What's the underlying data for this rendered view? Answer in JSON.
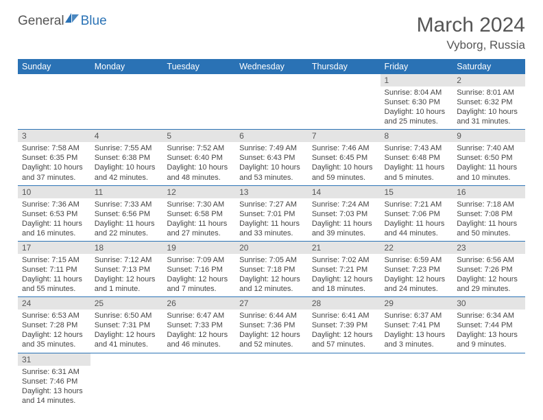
{
  "logo": {
    "general": "General",
    "blue": "Blue"
  },
  "title": "March 2024",
  "location": "Vyborg, Russia",
  "colors": {
    "header_bg": "#2a72b5",
    "header_fg": "#ffffff",
    "daynum_bg": "#e4e4e4",
    "row_border": "#2a72b5",
    "text": "#444444"
  },
  "weekdays": [
    "Sunday",
    "Monday",
    "Tuesday",
    "Wednesday",
    "Thursday",
    "Friday",
    "Saturday"
  ],
  "weeks": [
    [
      {
        "n": "",
        "sr": "",
        "ss": "",
        "dl": ""
      },
      {
        "n": "",
        "sr": "",
        "ss": "",
        "dl": ""
      },
      {
        "n": "",
        "sr": "",
        "ss": "",
        "dl": ""
      },
      {
        "n": "",
        "sr": "",
        "ss": "",
        "dl": ""
      },
      {
        "n": "",
        "sr": "",
        "ss": "",
        "dl": ""
      },
      {
        "n": "1",
        "sr": "Sunrise: 8:04 AM",
        "ss": "Sunset: 6:30 PM",
        "dl": "Daylight: 10 hours and 25 minutes."
      },
      {
        "n": "2",
        "sr": "Sunrise: 8:01 AM",
        "ss": "Sunset: 6:32 PM",
        "dl": "Daylight: 10 hours and 31 minutes."
      }
    ],
    [
      {
        "n": "3",
        "sr": "Sunrise: 7:58 AM",
        "ss": "Sunset: 6:35 PM",
        "dl": "Daylight: 10 hours and 37 minutes."
      },
      {
        "n": "4",
        "sr": "Sunrise: 7:55 AM",
        "ss": "Sunset: 6:38 PM",
        "dl": "Daylight: 10 hours and 42 minutes."
      },
      {
        "n": "5",
        "sr": "Sunrise: 7:52 AM",
        "ss": "Sunset: 6:40 PM",
        "dl": "Daylight: 10 hours and 48 minutes."
      },
      {
        "n": "6",
        "sr": "Sunrise: 7:49 AM",
        "ss": "Sunset: 6:43 PM",
        "dl": "Daylight: 10 hours and 53 minutes."
      },
      {
        "n": "7",
        "sr": "Sunrise: 7:46 AM",
        "ss": "Sunset: 6:45 PM",
        "dl": "Daylight: 10 hours and 59 minutes."
      },
      {
        "n": "8",
        "sr": "Sunrise: 7:43 AM",
        "ss": "Sunset: 6:48 PM",
        "dl": "Daylight: 11 hours and 5 minutes."
      },
      {
        "n": "9",
        "sr": "Sunrise: 7:40 AM",
        "ss": "Sunset: 6:50 PM",
        "dl": "Daylight: 11 hours and 10 minutes."
      }
    ],
    [
      {
        "n": "10",
        "sr": "Sunrise: 7:36 AM",
        "ss": "Sunset: 6:53 PM",
        "dl": "Daylight: 11 hours and 16 minutes."
      },
      {
        "n": "11",
        "sr": "Sunrise: 7:33 AM",
        "ss": "Sunset: 6:56 PM",
        "dl": "Daylight: 11 hours and 22 minutes."
      },
      {
        "n": "12",
        "sr": "Sunrise: 7:30 AM",
        "ss": "Sunset: 6:58 PM",
        "dl": "Daylight: 11 hours and 27 minutes."
      },
      {
        "n": "13",
        "sr": "Sunrise: 7:27 AM",
        "ss": "Sunset: 7:01 PM",
        "dl": "Daylight: 11 hours and 33 minutes."
      },
      {
        "n": "14",
        "sr": "Sunrise: 7:24 AM",
        "ss": "Sunset: 7:03 PM",
        "dl": "Daylight: 11 hours and 39 minutes."
      },
      {
        "n": "15",
        "sr": "Sunrise: 7:21 AM",
        "ss": "Sunset: 7:06 PM",
        "dl": "Daylight: 11 hours and 44 minutes."
      },
      {
        "n": "16",
        "sr": "Sunrise: 7:18 AM",
        "ss": "Sunset: 7:08 PM",
        "dl": "Daylight: 11 hours and 50 minutes."
      }
    ],
    [
      {
        "n": "17",
        "sr": "Sunrise: 7:15 AM",
        "ss": "Sunset: 7:11 PM",
        "dl": "Daylight: 11 hours and 55 minutes."
      },
      {
        "n": "18",
        "sr": "Sunrise: 7:12 AM",
        "ss": "Sunset: 7:13 PM",
        "dl": "Daylight: 12 hours and 1 minute."
      },
      {
        "n": "19",
        "sr": "Sunrise: 7:09 AM",
        "ss": "Sunset: 7:16 PM",
        "dl": "Daylight: 12 hours and 7 minutes."
      },
      {
        "n": "20",
        "sr": "Sunrise: 7:05 AM",
        "ss": "Sunset: 7:18 PM",
        "dl": "Daylight: 12 hours and 12 minutes."
      },
      {
        "n": "21",
        "sr": "Sunrise: 7:02 AM",
        "ss": "Sunset: 7:21 PM",
        "dl": "Daylight: 12 hours and 18 minutes."
      },
      {
        "n": "22",
        "sr": "Sunrise: 6:59 AM",
        "ss": "Sunset: 7:23 PM",
        "dl": "Daylight: 12 hours and 24 minutes."
      },
      {
        "n": "23",
        "sr": "Sunrise: 6:56 AM",
        "ss": "Sunset: 7:26 PM",
        "dl": "Daylight: 12 hours and 29 minutes."
      }
    ],
    [
      {
        "n": "24",
        "sr": "Sunrise: 6:53 AM",
        "ss": "Sunset: 7:28 PM",
        "dl": "Daylight: 12 hours and 35 minutes."
      },
      {
        "n": "25",
        "sr": "Sunrise: 6:50 AM",
        "ss": "Sunset: 7:31 PM",
        "dl": "Daylight: 12 hours and 41 minutes."
      },
      {
        "n": "26",
        "sr": "Sunrise: 6:47 AM",
        "ss": "Sunset: 7:33 PM",
        "dl": "Daylight: 12 hours and 46 minutes."
      },
      {
        "n": "27",
        "sr": "Sunrise: 6:44 AM",
        "ss": "Sunset: 7:36 PM",
        "dl": "Daylight: 12 hours and 52 minutes."
      },
      {
        "n": "28",
        "sr": "Sunrise: 6:41 AM",
        "ss": "Sunset: 7:39 PM",
        "dl": "Daylight: 12 hours and 57 minutes."
      },
      {
        "n": "29",
        "sr": "Sunrise: 6:37 AM",
        "ss": "Sunset: 7:41 PM",
        "dl": "Daylight: 13 hours and 3 minutes."
      },
      {
        "n": "30",
        "sr": "Sunrise: 6:34 AM",
        "ss": "Sunset: 7:44 PM",
        "dl": "Daylight: 13 hours and 9 minutes."
      }
    ],
    [
      {
        "n": "31",
        "sr": "Sunrise: 6:31 AM",
        "ss": "Sunset: 7:46 PM",
        "dl": "Daylight: 13 hours and 14 minutes."
      },
      {
        "n": "",
        "sr": "",
        "ss": "",
        "dl": ""
      },
      {
        "n": "",
        "sr": "",
        "ss": "",
        "dl": ""
      },
      {
        "n": "",
        "sr": "",
        "ss": "",
        "dl": ""
      },
      {
        "n": "",
        "sr": "",
        "ss": "",
        "dl": ""
      },
      {
        "n": "",
        "sr": "",
        "ss": "",
        "dl": ""
      },
      {
        "n": "",
        "sr": "",
        "ss": "",
        "dl": ""
      }
    ]
  ]
}
